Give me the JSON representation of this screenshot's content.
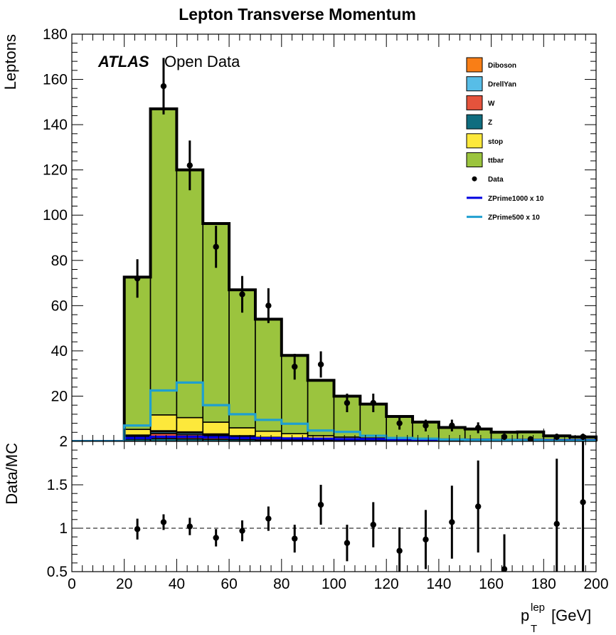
{
  "colors": {
    "Diboson": "#f97e16",
    "DrellYan": "#57bde7",
    "W": "#e5533c",
    "Z": "#0f6d7f",
    "stop": "#fde83b",
    "ttbar": "#9bc43e",
    "ZPrime1000": "#0000e0",
    "ZPrime500": "#1f9fd0"
  },
  "chart_data": [
    {
      "type": "histogram-stacked",
      "title": "Lepton Transverse Momentum",
      "experiment_label": "ATLAS",
      "experiment_sublabel": "Open Data",
      "ylabel": "Leptons",
      "xlim": [
        0,
        200
      ],
      "ylim": [
        0,
        180
      ],
      "bin_edges": [
        0,
        10,
        20,
        30,
        40,
        50,
        60,
        70,
        80,
        90,
        100,
        110,
        120,
        130,
        140,
        150,
        160,
        170,
        180,
        190,
        200
      ],
      "y_ticks": [
        "180",
        "160",
        "140",
        "120",
        "100",
        "80",
        "60",
        "40",
        "20",
        ""
      ],
      "y_tick_values": [
        180,
        160,
        140,
        120,
        100,
        80,
        60,
        40,
        20,
        0
      ],
      "stack_order": [
        "Z",
        "W",
        "DrellYan",
        "Diboson",
        "stop",
        "ttbar"
      ],
      "series": [
        {
          "name": "Z",
          "type": "stack",
          "values": [
            0,
            0,
            1.0,
            1.2,
            1.1,
            0.9,
            0.8,
            0.6,
            0.5,
            0.4,
            0.3,
            0.3,
            0.2,
            0.2,
            0.1,
            0.1,
            0.1,
            0.1,
            0.1,
            0.1
          ]
        },
        {
          "name": "W",
          "type": "stack",
          "values": [
            0,
            0,
            1.0,
            2.3,
            1.9,
            1.5,
            1.0,
            0.6,
            0.3,
            0.2,
            0.1,
            0.1,
            0.1,
            0.1,
            0.05,
            0.05,
            0.05,
            0.05,
            0.05,
            0.05
          ]
        },
        {
          "name": "DrellYan",
          "type": "stack",
          "values": [
            0,
            0,
            0.5,
            0.7,
            0.7,
            0.5,
            0.4,
            0.3,
            0.2,
            0.2,
            0.1,
            0.1,
            0.1,
            0.05,
            0.05,
            0.05,
            0.05,
            0.05,
            0.05,
            0.05
          ]
        },
        {
          "name": "Diboson",
          "type": "stack",
          "values": [
            0,
            0,
            0.3,
            0.5,
            0.5,
            0.4,
            0.3,
            0.3,
            0.2,
            0.2,
            0.1,
            0.1,
            0.1,
            0.1,
            0.05,
            0.05,
            0.05,
            0.05,
            0.05,
            0.05
          ]
        },
        {
          "name": "stop",
          "type": "stack",
          "values": [
            0,
            0,
            2.5,
            7.0,
            6.3,
            5.2,
            3.5,
            2.7,
            2.2,
            1.5,
            1.3,
            0.9,
            0.5,
            0.4,
            0.4,
            0.3,
            0.3,
            0.2,
            0.2,
            0.2
          ]
        },
        {
          "name": "ttbar",
          "type": "stack",
          "values": [
            0,
            0,
            67.3,
            135.3,
            109.5,
            87.8,
            61.0,
            49.5,
            34.6,
            24.5,
            18.1,
            15.0,
            10.0,
            7.7,
            5.5,
            4.9,
            3.5,
            3.7,
            2.0,
            1.5
          ]
        },
        {
          "name": "Data",
          "type": "points",
          "values": [
            null,
            null,
            72,
            157,
            122,
            86,
            65,
            60,
            33,
            34,
            17,
            17,
            8,
            7,
            7,
            6,
            2,
            1,
            2,
            2
          ],
          "errors": [
            null,
            null,
            8.5,
            12.5,
            11.0,
            9.3,
            8.1,
            7.7,
            5.7,
            5.8,
            4.1,
            4.1,
            2.8,
            2.6,
            2.6,
            2.4,
            1.4,
            1.0,
            1.4,
            1.4
          ]
        },
        {
          "name": "ZPrime1000 x 10",
          "type": "line",
          "values": [
            0,
            0,
            1.5,
            2.0,
            2.0,
            1.8,
            1.5,
            1.4,
            1.3,
            1.2,
            1.0,
            1.0,
            0.9,
            0.8,
            0.8,
            0.7,
            0.6,
            0.6,
            0.5,
            0.5
          ]
        },
        {
          "name": "ZPrime500 x 10",
          "type": "line",
          "values": [
            0,
            0,
            7,
            22.5,
            26,
            16,
            12,
            9.5,
            7.8,
            4.8,
            4.2,
            2.5,
            1.5,
            1.2,
            0.8,
            0.6,
            0.5,
            0.4,
            0.3,
            0.3
          ]
        }
      ]
    },
    {
      "type": "scatter-errorbar",
      "ylabel": "Data/MC",
      "xlabel_main": "p",
      "xlabel_sup": "lep",
      "xlabel_sub": "T",
      "xlabel_unit": "[GeV]",
      "xlim": [
        0,
        200
      ],
      "ylim": [
        0.5,
        2
      ],
      "x_ticks": [
        "0",
        "20",
        "40",
        "60",
        "80",
        "100",
        "120",
        "140",
        "160",
        "180",
        "200"
      ],
      "x_tick_values": [
        0,
        20,
        40,
        60,
        80,
        100,
        120,
        140,
        160,
        180,
        200
      ],
      "y_ticks": [
        "2",
        "1.5",
        "1",
        "0.5"
      ],
      "y_tick_values": [
        2,
        1.5,
        1,
        0.5
      ],
      "reference_line": 1,
      "x": [
        25,
        35,
        45,
        55,
        65,
        75,
        85,
        95,
        105,
        115,
        125,
        135,
        145,
        155,
        165,
        185,
        195
      ],
      "values": [
        0.99,
        1.07,
        1.02,
        0.89,
        0.97,
        1.11,
        0.88,
        1.27,
        0.83,
        1.04,
        0.74,
        0.87,
        1.07,
        1.25,
        0.53,
        1.05,
        1.3
      ],
      "errors": [
        0.12,
        0.09,
        0.1,
        0.1,
        0.12,
        0.14,
        0.16,
        0.23,
        0.21,
        0.26,
        0.27,
        0.34,
        0.42,
        0.53,
        0.4,
        0.75,
        0.9
      ]
    }
  ]
}
